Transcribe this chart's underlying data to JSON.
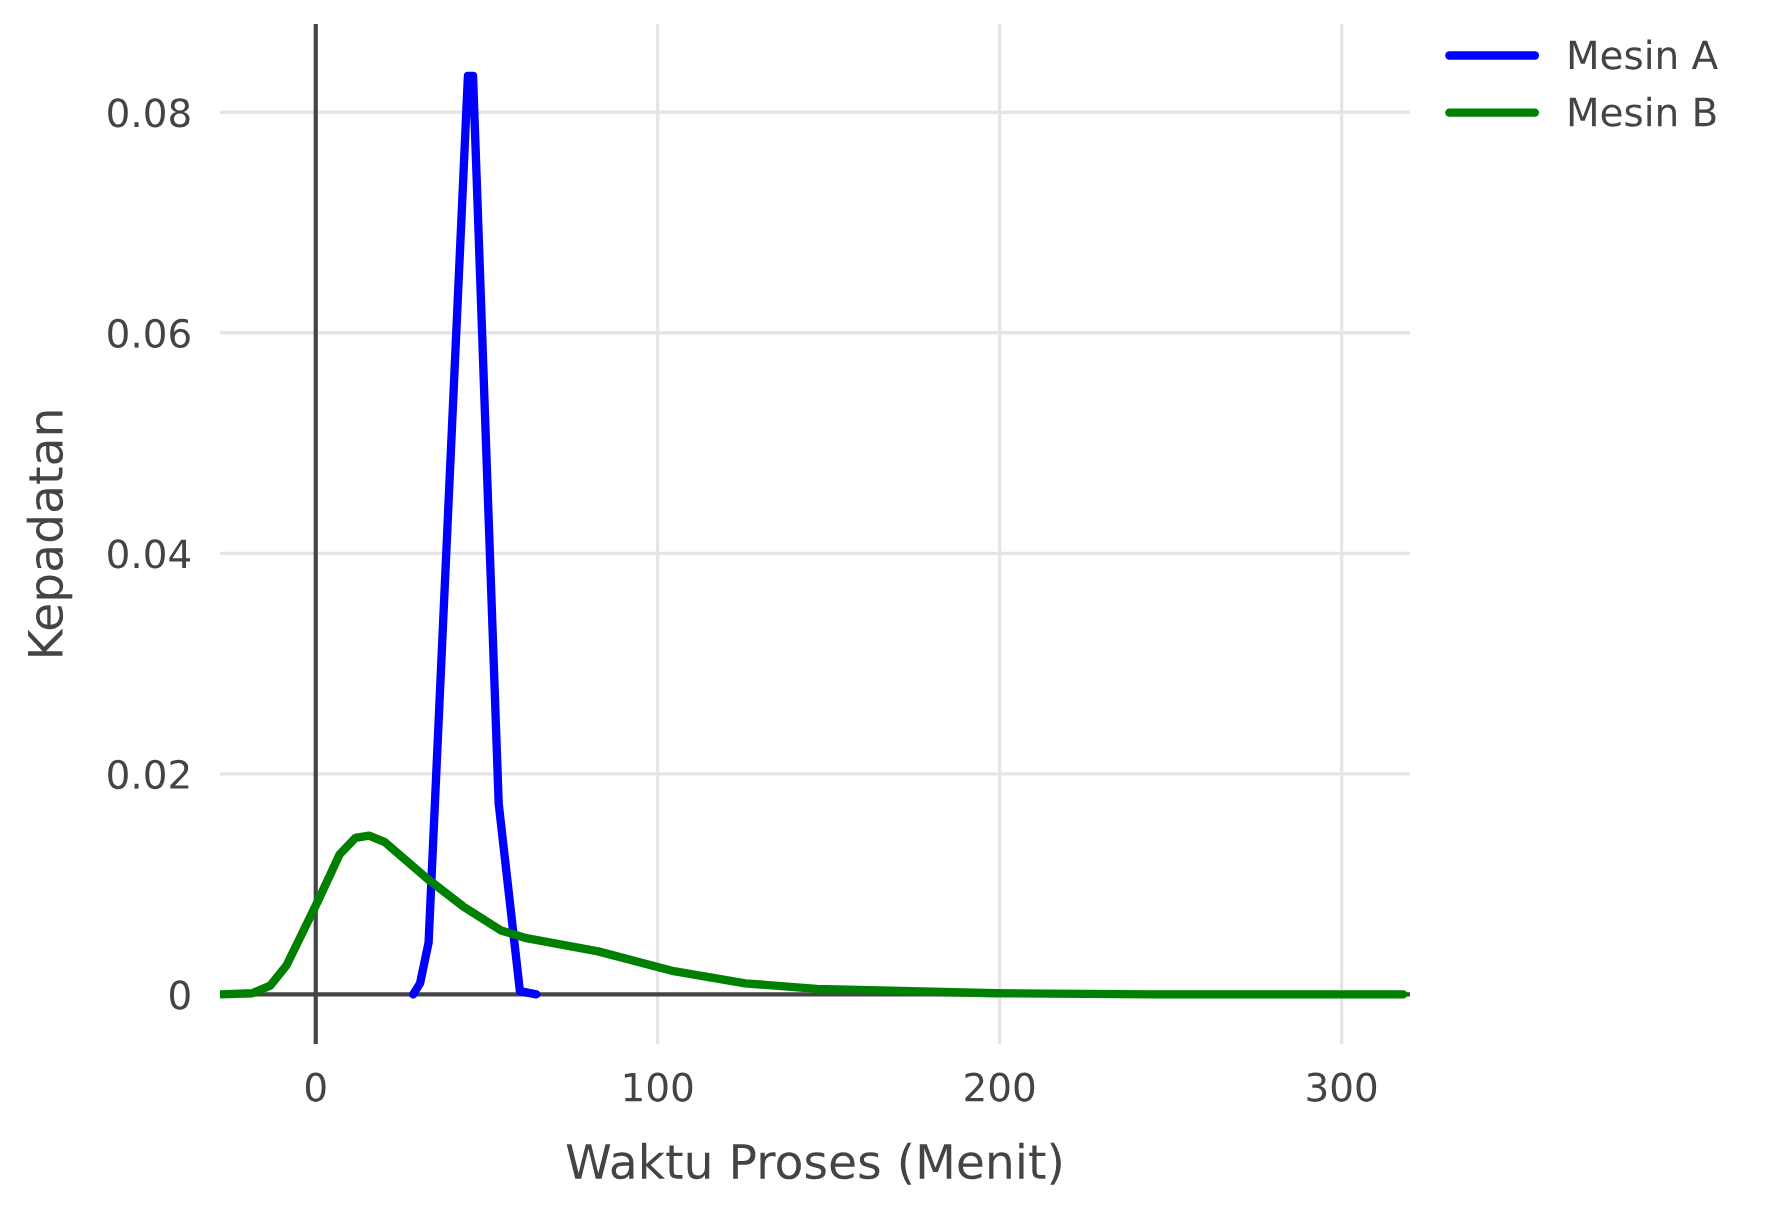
{
  "chart_data": {
    "type": "line",
    "xlabel": "Waktu Proses (Menit)",
    "ylabel": "Kepadatan",
    "xlim": [
      -28,
      320
    ],
    "ylim": [
      -0.0045,
      0.088
    ],
    "xticks": [
      0,
      100,
      200,
      300
    ],
    "yticks": [
      0,
      0.02,
      0.04,
      0.06,
      0.08
    ],
    "grid": true,
    "legend": "top right",
    "marker": "none",
    "line_style": "solid",
    "series": [
      {
        "name": "Mesin A",
        "color": "#0000ff",
        "x": [
          28.5,
          30.5,
          33,
          44.5,
          46,
          53.5,
          59.7,
          64.5
        ],
        "values": [
          0,
          0.001,
          0.0047,
          0.0833,
          0.0833,
          0.0173,
          0.0003,
          0
        ]
      },
      {
        "name": "Mesin B",
        "color": "#008000",
        "x": [
          -28,
          -18.6,
          -13.3,
          -8.6,
          0.7,
          7,
          11.6,
          15.6,
          20.2,
          32.6,
          43,
          54.2,
          61.6,
          82.6,
          104.7,
          125.6,
          146.5,
          198.8,
          245,
          318
        ],
        "values": [
          0,
          0.0001,
          0.0008,
          0.0026,
          0.0085,
          0.0127,
          0.0142,
          0.0144,
          0.0138,
          0.0105,
          0.008,
          0.0058,
          0.0051,
          0.0039,
          0.0021,
          0.001,
          0.0005,
          0.0001,
          0,
          0
        ]
      }
    ]
  }
}
